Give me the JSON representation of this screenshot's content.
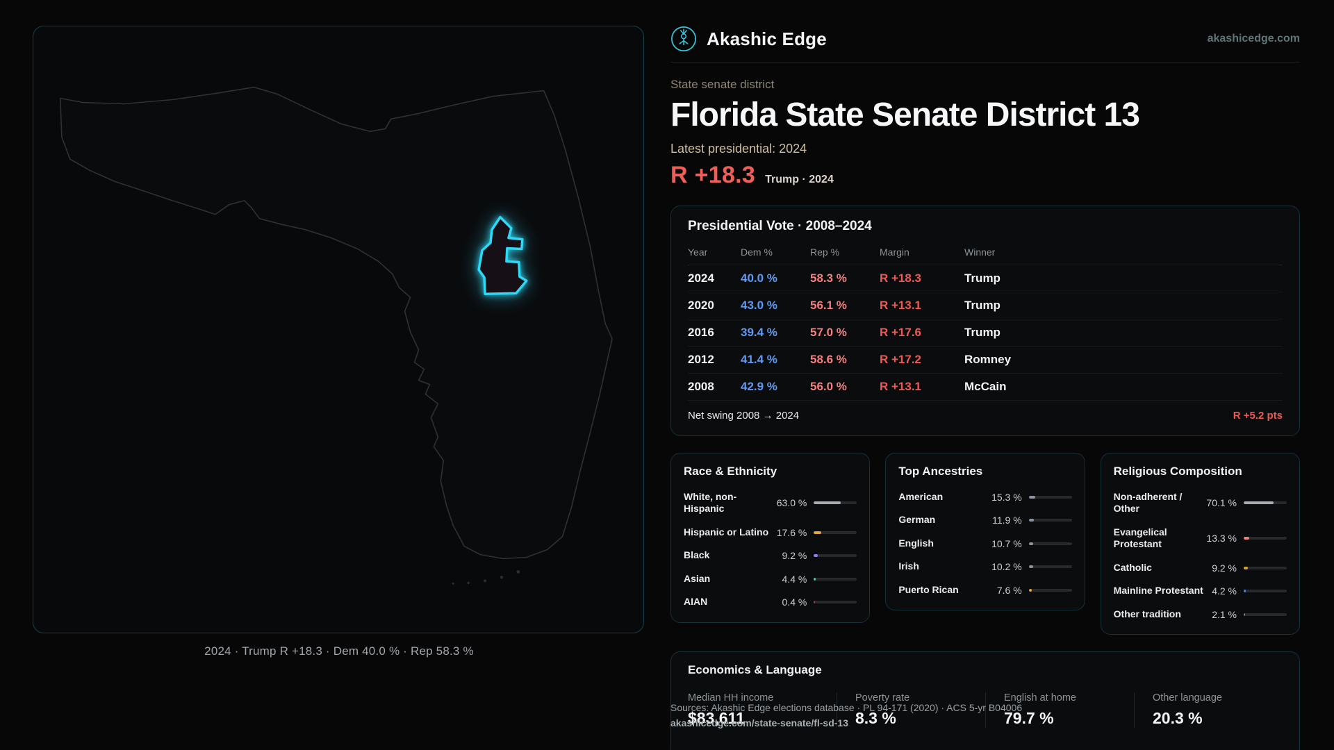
{
  "brand": {
    "name": "Akashic Edge",
    "domain": "akashicedge.com",
    "accent": "#35c9dd"
  },
  "page": {
    "kicker": "State senate district",
    "title": "Florida State Senate District 13",
    "latest_label": "Latest presidential: 2024",
    "margin_big": "R +18.3",
    "margin_context": "Trump · 2024"
  },
  "map": {
    "caption": "2024 · Trump R +18.3 · Dem 40.0 % · Rep 58.3 %",
    "district_color": "#2fd8f5"
  },
  "presidential": {
    "title": "Presidential Vote · 2008–2024",
    "columns": [
      "Year",
      "Dem %",
      "Rep %",
      "Margin",
      "Winner"
    ],
    "rows": [
      {
        "year": "2024",
        "dem": "40.0 %",
        "rep": "58.3 %",
        "margin": "R +18.3",
        "winner": "Trump"
      },
      {
        "year": "2020",
        "dem": "43.0 %",
        "rep": "56.1 %",
        "margin": "R +13.1",
        "winner": "Trump"
      },
      {
        "year": "2016",
        "dem": "39.4 %",
        "rep": "57.0 %",
        "margin": "R +17.6",
        "winner": "Trump"
      },
      {
        "year": "2012",
        "dem": "41.4 %",
        "rep": "58.6 %",
        "margin": "R +17.2",
        "winner": "Romney"
      },
      {
        "year": "2008",
        "dem": "42.9 %",
        "rep": "56.0 %",
        "margin": "R +13.1",
        "winner": "McCain"
      }
    ],
    "net_swing_label": "Net swing 2008 → 2024",
    "net_swing_value": "R +5.2 pts"
  },
  "race": {
    "title": "Race & Ethnicity",
    "rows": [
      {
        "label": "White, non-Hispanic",
        "value": "63.0 %",
        "pct": 63.0,
        "color": "#a9adb3"
      },
      {
        "label": "Hispanic or Latino",
        "value": "17.6 %",
        "pct": 17.6,
        "color": "#e8a33d"
      },
      {
        "label": "Black",
        "value": "9.2 %",
        "pct": 9.2,
        "color": "#8b7cf6"
      },
      {
        "label": "Asian",
        "value": "4.4 %",
        "pct": 4.4,
        "color": "#3ecf9a"
      },
      {
        "label": "AIAN",
        "value": "0.4 %",
        "pct": 0.4,
        "color": "#a33b3b"
      }
    ]
  },
  "ancestries": {
    "title": "Top Ancestries",
    "rows": [
      {
        "label": "American",
        "value": "15.3 %",
        "pct": 15.3,
        "color": "#8a94a3"
      },
      {
        "label": "German",
        "value": "11.9 %",
        "pct": 11.9,
        "color": "#8a94a3"
      },
      {
        "label": "English",
        "value": "10.7 %",
        "pct": 10.7,
        "color": "#8a94a3"
      },
      {
        "label": "Irish",
        "value": "10.2 %",
        "pct": 10.2,
        "color": "#8a94a3"
      },
      {
        "label": "Puerto Rican",
        "value": "7.6 %",
        "pct": 7.6,
        "color": "#e8a33d"
      }
    ]
  },
  "religion": {
    "title": "Religious Composition",
    "rows": [
      {
        "label": "Non-adherent / Other",
        "value": "70.1 %",
        "pct": 70.1,
        "color": "#a9adb3"
      },
      {
        "label": "Evangelical Protestant",
        "value": "13.3 %",
        "pct": 13.3,
        "color": "#ef8078"
      },
      {
        "label": "Catholic",
        "value": "9.2 %",
        "pct": 9.2,
        "color": "#d9a528"
      },
      {
        "label": "Mainline Protestant",
        "value": "4.2 %",
        "pct": 4.2,
        "color": "#4f82e8"
      },
      {
        "label": "Other tradition",
        "value": "2.1 %",
        "pct": 2.1,
        "color": "#7a8187"
      }
    ]
  },
  "economics": {
    "title": "Economics & Language",
    "stats": [
      {
        "label": "Median HH income",
        "value": "$83,611"
      },
      {
        "label": "Poverty rate",
        "value": "8.3 %"
      },
      {
        "label": "English at home",
        "value": "79.7 %"
      },
      {
        "label": "Other language",
        "value": "20.3 %"
      }
    ]
  },
  "sources": {
    "line1": "Sources: Akashic Edge elections database · PL 94-171 (2020) · ACS 5-yr B04006",
    "line2": "akashicedge.com/state-senate/fl-sd-13"
  }
}
